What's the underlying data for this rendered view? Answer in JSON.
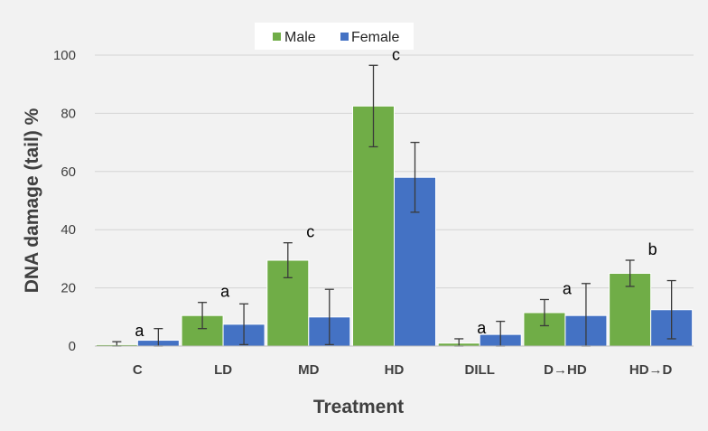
{
  "chart_data": {
    "type": "bar",
    "categories": [
      "C",
      "LD",
      "MD",
      "HD",
      "DILL",
      "D→HD",
      "HD→D"
    ],
    "series": [
      {
        "name": "Male",
        "color": "#70ad47",
        "values": [
          0.5,
          10.5,
          29.5,
          82.5,
          1.0,
          11.5,
          25.0
        ],
        "errors": [
          1.0,
          4.5,
          6.0,
          14.0,
          1.5,
          4.5,
          4.5
        ]
      },
      {
        "name": "Female",
        "color": "#4472c4",
        "values": [
          2.0,
          7.5,
          10.0,
          58.0,
          4.0,
          10.5,
          12.5
        ],
        "errors": [
          4.0,
          7.0,
          9.5,
          12.0,
          4.5,
          11.0,
          10.0
        ]
      }
    ],
    "significance_labels": [
      "a",
      "a",
      "c",
      "c",
      "a",
      "a",
      "b"
    ],
    "xlabel": "Treatment",
    "ylabel": "DNA damage (tail) %",
    "ylim": [
      0,
      100
    ],
    "yticks": [
      0,
      20,
      40,
      60,
      80,
      100
    ],
    "grid": true,
    "legend_position": "top-center"
  }
}
